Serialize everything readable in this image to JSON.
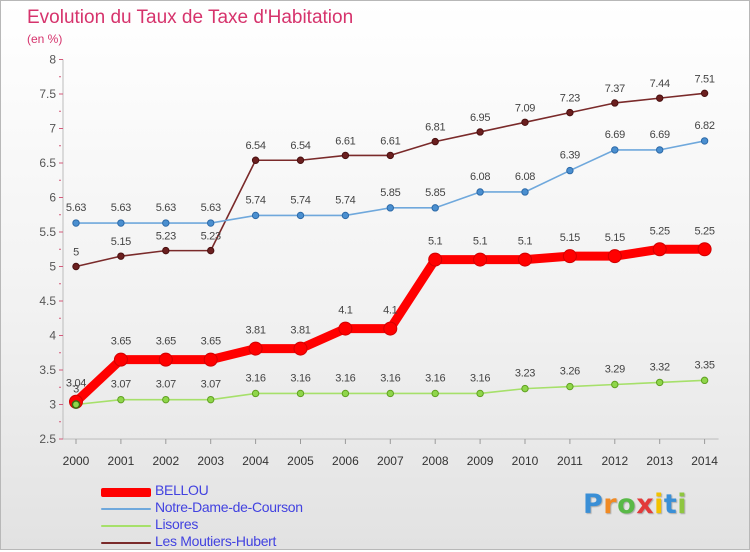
{
  "chart_data": {
    "type": "line",
    "title": "Evolution du Taux de Taxe d'Habitation",
    "subtitle": "(en %)",
    "x": [
      "2000",
      "2001",
      "2002",
      "2003",
      "2004",
      "2005",
      "2006",
      "2007",
      "2008",
      "2009",
      "2010",
      "2011",
      "2012",
      "2013",
      "2014"
    ],
    "ylim": [
      2.5,
      8
    ],
    "yticks": [
      "2.5",
      "3",
      "3.5",
      "4",
      "4.5",
      "5",
      "5.5",
      "6",
      "6.5",
      "7",
      "7.5",
      "8"
    ],
    "grid": false,
    "legend_position": "bottom-left",
    "series": [
      {
        "name": "BELLOU",
        "color": "#ff0000",
        "values": [
          3.04,
          3.65,
          3.65,
          3.65,
          3.81,
          3.81,
          4.1,
          4.1,
          5.1,
          5.1,
          5.1,
          5.15,
          5.15,
          5.25,
          5.25
        ],
        "labels": [
          "3.04",
          "3.65",
          "3.65",
          "3.65",
          "3.81",
          "3.81",
          "4.1",
          "4.1",
          "5.1",
          "5.1",
          "5.1",
          "5.15",
          "5.15",
          "5.25",
          "5.25"
        ]
      },
      {
        "name": "Notre-Dame-de-Courson",
        "color": "#6fa8dc",
        "values": [
          5.63,
          5.63,
          5.63,
          5.63,
          5.74,
          5.74,
          5.74,
          5.85,
          5.85,
          6.08,
          6.08,
          6.39,
          6.69,
          6.69,
          6.82
        ],
        "labels": [
          "5.63",
          "5.63",
          "5.63",
          "5.63",
          "5.74",
          "5.74",
          "5.74",
          "5.85",
          "5.85",
          "6.08",
          "6.08",
          "6.39",
          "6.69",
          "6.69",
          "6.82"
        ]
      },
      {
        "name": "Lisores",
        "color": "#a6e06a",
        "values": [
          3.0,
          3.07,
          3.07,
          3.07,
          3.16,
          3.16,
          3.16,
          3.16,
          3.16,
          3.16,
          3.23,
          3.26,
          3.29,
          3.32,
          3.35
        ],
        "labels": [
          "3",
          "3.07",
          "3.07",
          "3.07",
          "3.16",
          "3.16",
          "3.16",
          "3.16",
          "3.16",
          "3.16",
          "3.23",
          "3.26",
          "3.29",
          "3.32",
          "3.35"
        ]
      },
      {
        "name": "Les Moutiers-Hubert",
        "color": "#7a2a2a",
        "values": [
          5.0,
          5.15,
          5.23,
          5.23,
          6.54,
          6.54,
          6.61,
          6.61,
          6.81,
          6.95,
          7.09,
          7.23,
          7.37,
          7.44,
          7.51
        ],
        "labels": [
          "5",
          "5.15",
          "5.23",
          "5.23",
          "6.54",
          "6.54",
          "6.61",
          "6.61",
          "6.81",
          "6.95",
          "7.09",
          "7.23",
          "7.37",
          "7.44",
          "7.51"
        ]
      }
    ]
  },
  "logo": {
    "letters": [
      "P",
      "r",
      "o",
      "x",
      "i",
      "t",
      "i"
    ],
    "colors": [
      "#3a8fd6",
      "#f08a24",
      "#59b947",
      "#e23b3b",
      "#f2c200",
      "#3a8fd6",
      "#8fc640"
    ]
  }
}
